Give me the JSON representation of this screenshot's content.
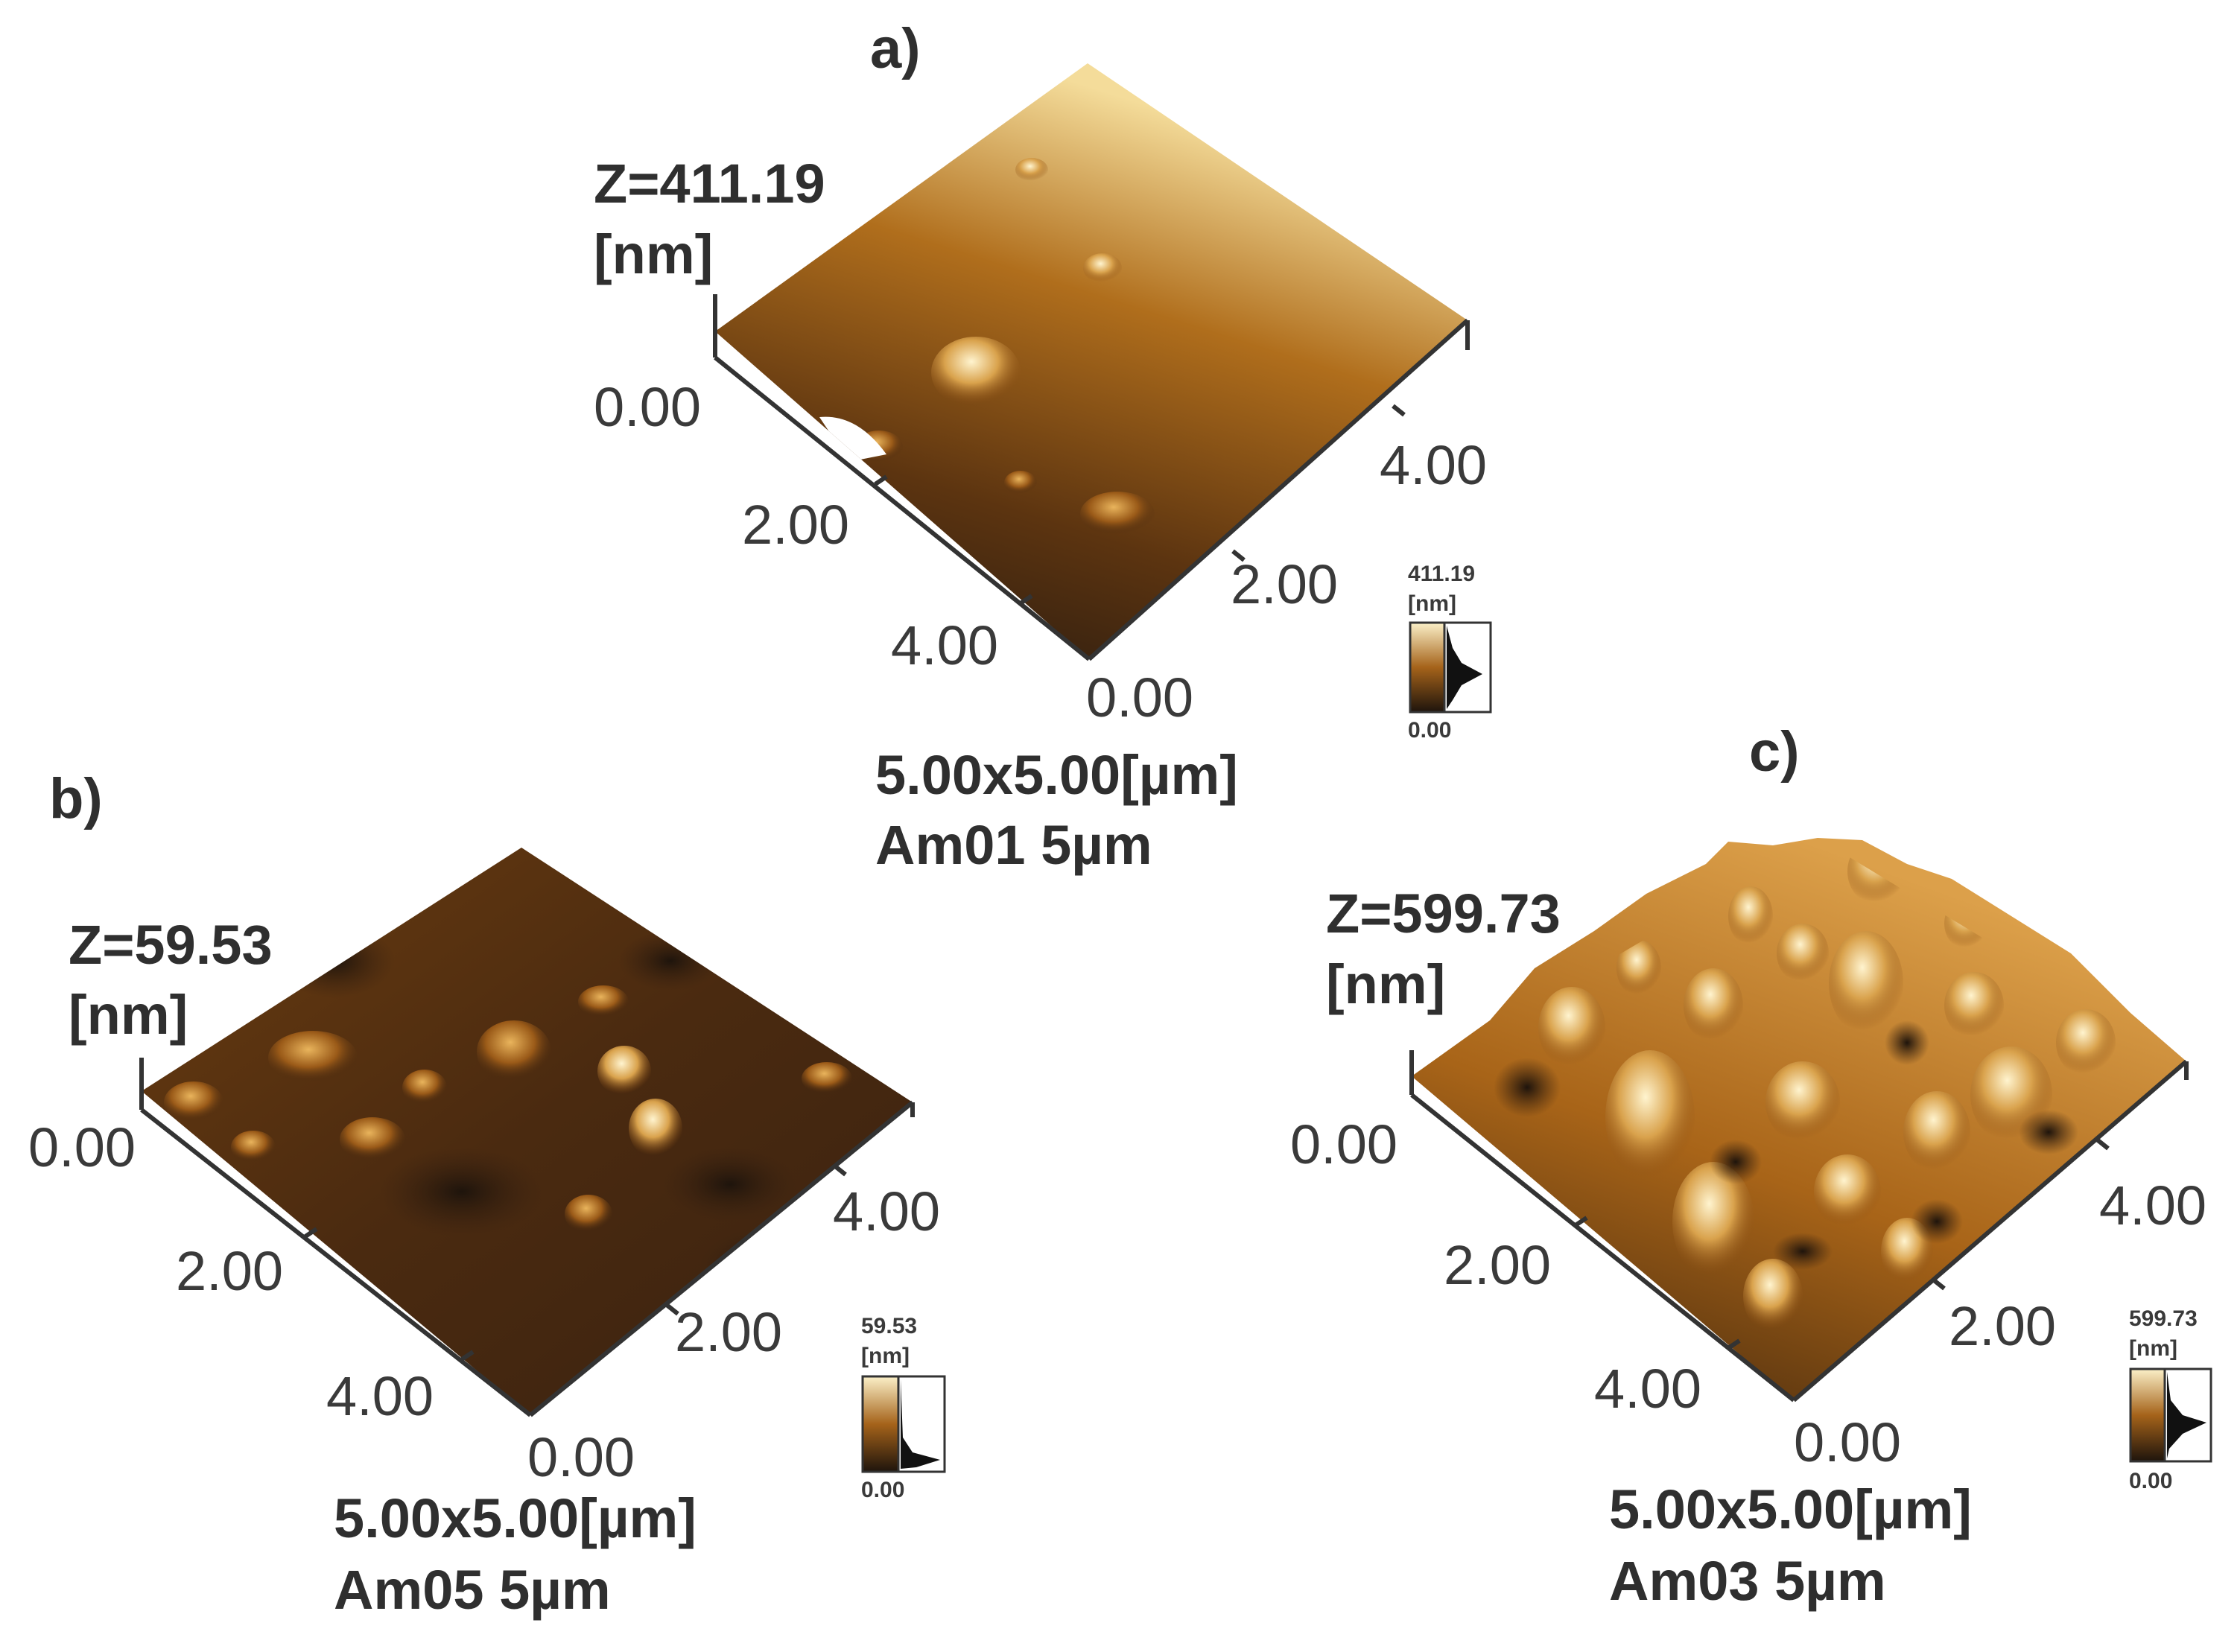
{
  "panels": [
    {
      "id": "a",
      "label": "a)",
      "z_label": "Z=411.19",
      "z_unit": "[nm]",
      "z_origin": "0.00",
      "left_ticks": [
        "2.00",
        "4.00"
      ],
      "right_ticks": [
        "0.00",
        "2.00",
        "4.00"
      ],
      "scan_size": "5.00x5.00[µm]",
      "sample": "Am01 5µm",
      "colorbar": {
        "max": "411.19",
        "unit": "[nm]",
        "min": "0.00"
      },
      "surface": "smooth"
    },
    {
      "id": "b",
      "label": "b)",
      "z_label": "Z=59.53",
      "z_unit": "[nm]",
      "z_origin": "0.00",
      "left_ticks": [
        "2.00",
        "4.00"
      ],
      "right_ticks": [
        "0.00",
        "2.00",
        "4.00"
      ],
      "scan_size": "5.00x5.00[µm]",
      "sample": "Am05 5µm",
      "colorbar": {
        "max": "59.53",
        "unit": "[nm]",
        "min": "0.00"
      },
      "surface": "dark-grains"
    },
    {
      "id": "c",
      "label": "c)",
      "z_label": "Z=599.73",
      "z_unit": "[nm]",
      "z_origin": "0.00",
      "left_ticks": [
        "2.00",
        "4.00"
      ],
      "right_ticks": [
        "0.00",
        "2.00",
        "4.00"
      ],
      "scan_size": "5.00x5.00[µm]",
      "sample": "Am03 5µm",
      "colorbar": {
        "max": "599.73",
        "unit": "[nm]",
        "min": "0.00"
      },
      "surface": "rough"
    }
  ],
  "colors": {
    "dark": "#2a1a0c",
    "mid": "#a5631a",
    "light": "#f7e6b0",
    "axis": "#333333"
  }
}
